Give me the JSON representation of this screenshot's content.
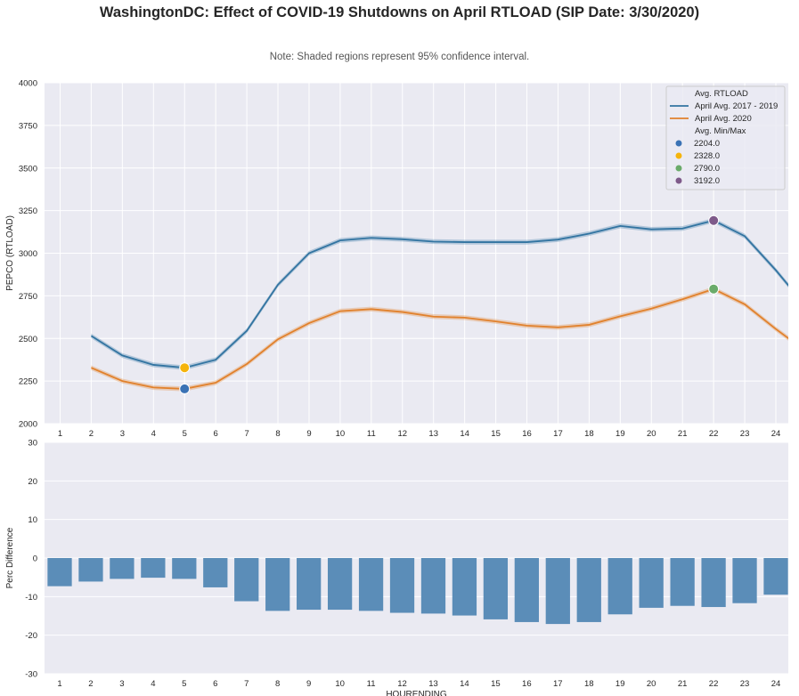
{
  "title": "WashingtonDC: Effect of COVID-19 Shutdowns on April RTLOAD (SIP Date: 3/30/2020)",
  "note": "Note: Shaded regions represent 95% confidence interval.",
  "colors": {
    "blue": "#3274a1",
    "orange": "#e1812c",
    "bar": "#5b8db8",
    "min_blue": "#3a72b5",
    "min_yellow": "#f5b40c",
    "max_green": "#6aab6a",
    "max_purple": "#7e5a8a",
    "bg": "#eaeaf2"
  },
  "chart_data": [
    {
      "type": "line",
      "title": "",
      "xlabel": "",
      "ylabel": "PEPCO (RTLOAD)",
      "xlim": [
        0.5,
        24.4
      ],
      "ylim": [
        2000,
        4000
      ],
      "yticks": [
        2000,
        2250,
        2500,
        2750,
        3000,
        3250,
        3500,
        3750,
        4000
      ],
      "xticks": [
        1,
        2,
        3,
        4,
        5,
        6,
        7,
        8,
        9,
        10,
        11,
        12,
        13,
        14,
        15,
        16,
        17,
        18,
        19,
        20,
        21,
        22,
        23,
        24
      ],
      "grid": true,
      "legend_position": "top-right",
      "legend_title_lines": "Avg. RTLOAD",
      "legend_title_points": "Avg. Min/Max",
      "x": [
        2,
        3,
        4,
        5,
        6,
        7,
        8,
        9,
        10,
        11,
        12,
        13,
        14,
        15,
        16,
        17,
        18,
        19,
        20,
        21,
        22,
        23,
        24,
        25
      ],
      "series": [
        {
          "name": "April Avg. 2017 - 2019",
          "values": [
            2515,
            2400,
            2345,
            2328,
            2375,
            2545,
            2815,
            3000,
            3075,
            3090,
            3082,
            3068,
            3065,
            3065,
            3065,
            3080,
            3115,
            3160,
            3140,
            3145,
            3192,
            3100,
            2900,
            2680
          ]
        },
        {
          "name": "April Avg. 2020",
          "values": [
            2328,
            2250,
            2212,
            2204,
            2240,
            2350,
            2495,
            2590,
            2660,
            2672,
            2655,
            2628,
            2622,
            2600,
            2575,
            2565,
            2580,
            2630,
            2675,
            2730,
            2790,
            2700,
            2555,
            2420
          ]
        }
      ],
      "points": [
        {
          "label": "2204.0",
          "x": 5,
          "y": 2204
        },
        {
          "label": "2328.0",
          "x": 5,
          "y": 2328
        },
        {
          "label": "2790.0",
          "x": 22,
          "y": 2790
        },
        {
          "label": "3192.0",
          "x": 22,
          "y": 3192
        }
      ]
    },
    {
      "type": "bar",
      "xlabel": "HOURENDING",
      "ylabel": "Perc Difference",
      "ylim": [
        -30,
        30
      ],
      "yticks": [
        -30,
        -20,
        -10,
        0,
        10,
        20,
        30
      ],
      "grid": true,
      "categories": [
        "1",
        "2",
        "3",
        "4",
        "5",
        "6",
        "7",
        "8",
        "9",
        "10",
        "11",
        "12",
        "13",
        "14",
        "15",
        "16",
        "17",
        "18",
        "19",
        "20",
        "21",
        "22",
        "23",
        "24"
      ],
      "values": [
        -7.3,
        -6.1,
        -5.4,
        -5.1,
        -5.4,
        -7.6,
        -11.2,
        -13.7,
        -13.4,
        -13.4,
        -13.7,
        -14.2,
        -14.4,
        -14.9,
        -15.9,
        -16.6,
        -17.1,
        -16.6,
        -14.6,
        -12.9,
        -12.4,
        -12.7,
        -11.7,
        -9.5
      ]
    }
  ]
}
